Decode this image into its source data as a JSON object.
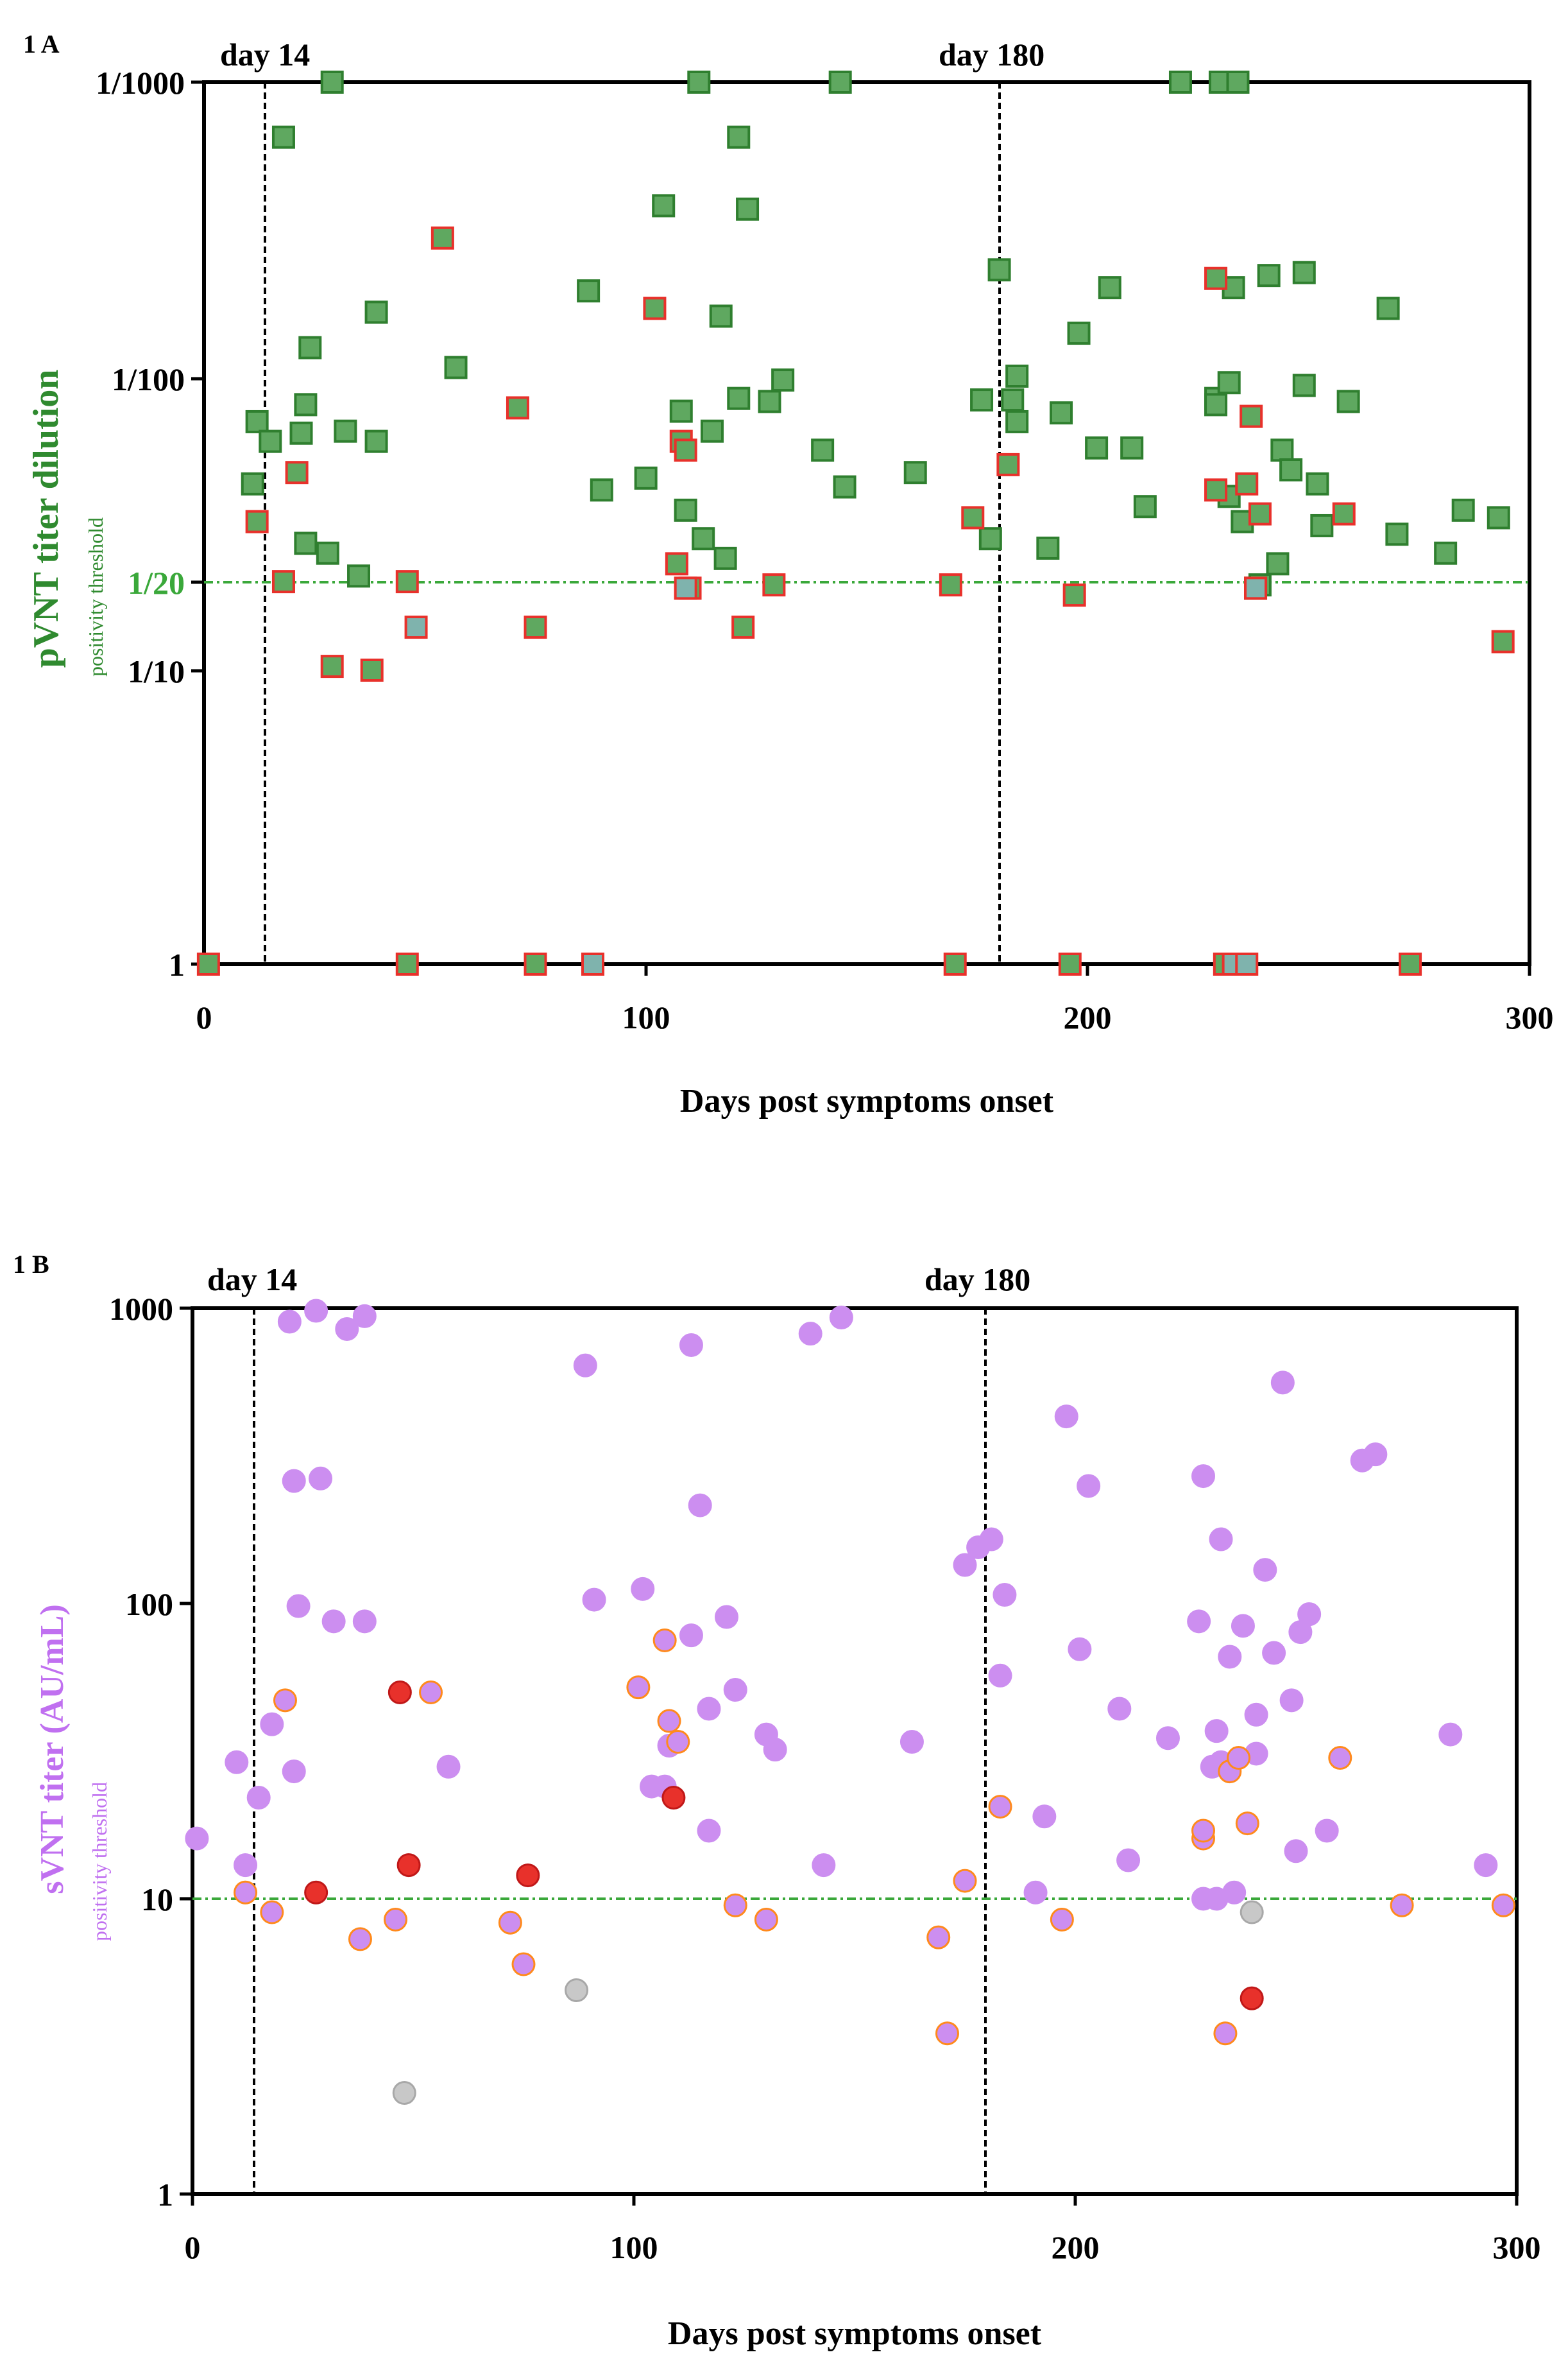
{
  "colors": {
    "green_fill": "#5fa860",
    "green_edge": "#2f7f2f",
    "red_edge": "#e8312b",
    "teal_fill": "#7fb3ad",
    "blue_edge": "#2f7fc0",
    "violet_fill": "#cc8ef0",
    "red_fill": "#e8312b",
    "orange_edge": "#ff8a1c",
    "gray_fill": "#c8c8c8",
    "threshold_green": "#3aa83a",
    "axis_violet": "#c070f0"
  },
  "chart_data": [
    {
      "id": "1A",
      "type": "scatter",
      "panel_label": "1 A",
      "xlabel": "Days post symptoms onset",
      "ylabel": "pVNT titer dilution",
      "ylabel_sub": "positivity threshold",
      "xlim": [
        0,
        300
      ],
      "ylim": [
        1,
        1000
      ],
      "yscale": "log",
      "xticks": [
        0,
        100,
        200,
        300
      ],
      "yticks": [
        {
          "value": 1,
          "label": "1"
        },
        {
          "value": 10,
          "label": "1/10"
        },
        {
          "value": 20,
          "label": "1/20"
        },
        {
          "value": 100,
          "label": "1/100"
        },
        {
          "value": 1000,
          "label": "1/1000"
        }
      ],
      "vlines": [
        {
          "x": 14,
          "label": "day 14"
        },
        {
          "x": 180,
          "label": "day 180"
        }
      ],
      "threshold": 20,
      "series": [
        {
          "name": "green",
          "points": [
            [
              11,
              43
            ],
            [
              12,
              70
            ],
            [
              15,
              60
            ],
            [
              18,
              650
            ],
            [
              22,
              64
            ],
            [
              23,
              80
            ],
            [
              24,
              125
            ],
            [
              23,
              27
            ],
            [
              28,
              25
            ],
            [
              29,
              1000
            ],
            [
              32,
              65
            ],
            [
              35,
              20.9
            ],
            [
              39,
              60
            ],
            [
              39,
              165
            ],
            [
              57,
              107
            ],
            [
              87,
              195
            ],
            [
              90,
              41
            ],
            [
              100,
              45
            ],
            [
              104,
              380
            ],
            [
              108,
              76
            ],
            [
              109,
              35
            ],
            [
              112,
              1000
            ],
            [
              113,
              28
            ],
            [
              115,
              65
            ],
            [
              117,
              160
            ],
            [
              118,
              24
            ],
            [
              121,
              650
            ],
            [
              121,
              84
            ],
            [
              123,
              370
            ],
            [
              128,
              82
            ],
            [
              131,
              97
            ],
            [
              140,
              56
            ],
            [
              145,
              42
            ],
            [
              144,
              1000
            ],
            [
              161,
              47
            ],
            [
              176,
              83
            ],
            [
              178,
              28
            ],
            [
              180,
              230
            ],
            [
              183,
              83
            ],
            [
              184,
              70
            ],
            [
              184,
              100
            ],
            [
              191,
              26
            ],
            [
              194,
              75
            ],
            [
              198,
              140
            ],
            [
              202,
              57
            ],
            [
              205,
              200
            ],
            [
              210,
              57
            ],
            [
              213,
              36
            ],
            [
              221,
              1000
            ],
            [
              229,
              84
            ],
            [
              229,
              80
            ],
            [
              230,
              1000
            ],
            [
              232,
              39
            ],
            [
              233,
              200
            ],
            [
              232,
              95
            ],
            [
              234,
              1000
            ],
            [
              235,
              32
            ],
            [
              238,
              19
            ],
            [
              239,
              19.5
            ],
            [
              243,
              23
            ],
            [
              241,
              220
            ],
            [
              244,
              56
            ],
            [
              246,
              48
            ],
            [
              249,
              93
            ],
            [
              249,
              225
            ],
            [
              252,
              43
            ],
            [
              253,
              31
            ],
            [
              259,
              82
            ],
            [
              268,
              170
            ],
            [
              270,
              29
            ],
            [
              281,
              25
            ],
            [
              285,
              35
            ],
            [
              293,
              33
            ]
          ]
        },
        {
          "name": "red",
          "points": [
            [
              1,
              1
            ],
            [
              12,
              32
            ],
            [
              21,
              47
            ],
            [
              18,
              20
            ],
            [
              29,
              10.3
            ],
            [
              38,
              10
            ],
            [
              46,
              20
            ],
            [
              46,
              1
            ],
            [
              54,
              295
            ],
            [
              71,
              78
            ],
            [
              75,
              14
            ],
            [
              75,
              1
            ],
            [
              102,
              170
            ],
            [
              107,
              23
            ],
            [
              108,
              60
            ],
            [
              109,
              56
            ],
            [
              110,
              19
            ],
            [
              122,
              14
            ],
            [
              129,
              19.5
            ],
            [
              169,
              19.5
            ],
            [
              170,
              1
            ],
            [
              174,
              33
            ],
            [
              182,
              50
            ],
            [
              196,
              1
            ],
            [
              197,
              18
            ],
            [
              229,
              215
            ],
            [
              229,
              41
            ],
            [
              231,
              1
            ],
            [
              236,
              43
            ],
            [
              237,
              73
            ],
            [
              239,
              34
            ],
            [
              258,
              34
            ],
            [
              294,
              12.5
            ],
            [
              273,
              1
            ]
          ]
        },
        {
          "name": "teal",
          "points": [
            [
              48,
              14
            ],
            [
              109,
              19
            ],
            [
              88,
              1
            ],
            [
              233,
              1
            ],
            [
              236,
              1
            ],
            [
              238,
              19
            ]
          ]
        }
      ]
    },
    {
      "id": "1B",
      "type": "scatter",
      "panel_label": "1 B",
      "xlabel": "Days post symptoms onset",
      "ylabel": "sVNT titer (AU/mL)",
      "ylabel_sub": "positivity threshold",
      "xlim": [
        0,
        300
      ],
      "ylim": [
        1,
        1000
      ],
      "yscale": "log",
      "xticks": [
        0,
        100,
        200,
        300
      ],
      "yticks": [
        {
          "value": 1,
          "label": "1"
        },
        {
          "value": 10,
          "label": "10"
        },
        {
          "value": 100,
          "label": "100"
        },
        {
          "value": 1000,
          "label": "1000"
        }
      ],
      "vlines": [
        {
          "x": 14,
          "label": "day 14"
        },
        {
          "x": 180,
          "label": "day 180"
        }
      ],
      "threshold": 10,
      "series": [
        {
          "name": "violet",
          "points": [
            [
              1,
              16
            ],
            [
              10,
              29
            ],
            [
              12,
              13
            ],
            [
              15,
              22
            ],
            [
              18,
              39
            ],
            [
              22,
              900
            ],
            [
              23,
              260
            ],
            [
              23,
              27
            ],
            [
              24,
              98
            ],
            [
              28,
              980
            ],
            [
              29,
              265
            ],
            [
              32,
              87
            ],
            [
              35,
              850
            ],
            [
              39,
              940
            ],
            [
              39,
              87
            ],
            [
              58,
              28
            ],
            [
              89,
              640
            ],
            [
              91,
              103
            ],
            [
              102,
              112
            ],
            [
              104,
              24
            ],
            [
              107,
              24
            ],
            [
              108,
              33
            ],
            [
              113,
              78
            ],
            [
              113,
              750
            ],
            [
              115,
              215
            ],
            [
              117,
              17
            ],
            [
              117,
              44
            ],
            [
              121,
              90
            ],
            [
              123,
              51
            ],
            [
              130,
              36
            ],
            [
              132,
              32
            ],
            [
              140,
              820
            ],
            [
              143,
              13
            ],
            [
              147,
              930
            ],
            [
              163,
              34
            ],
            [
              175,
              135
            ],
            [
              178,
              155
            ],
            [
              181,
              165
            ],
            [
              184,
              107
            ],
            [
              183,
              57
            ],
            [
              191,
              10.5
            ],
            [
              193,
              19
            ],
            [
              198,
              430
            ],
            [
              201,
              70
            ],
            [
              203,
              250
            ],
            [
              210,
              44
            ],
            [
              212,
              13.5
            ],
            [
              221,
              35
            ],
            [
              228,
              87
            ],
            [
              229,
              270
            ],
            [
              231,
              28
            ],
            [
              232,
              37
            ],
            [
              233,
              165
            ],
            [
              233,
              29
            ],
            [
              235,
              66
            ],
            [
              238,
              84
            ],
            [
              241,
              31
            ],
            [
              241,
              42
            ],
            [
              243,
              130
            ],
            [
              245,
              68
            ],
            [
              247,
              560
            ],
            [
              249,
              47
            ],
            [
              250,
              14.5
            ],
            [
              251,
              80
            ],
            [
              253,
              92
            ],
            [
              257,
              17
            ],
            [
              265,
              305
            ],
            [
              268,
              320
            ],
            [
              285,
              36
            ],
            [
              293,
              13
            ],
            [
              229,
              10
            ],
            [
              232,
              10
            ],
            [
              236,
              10.5
            ]
          ]
        },
        {
          "name": "red",
          "points": [
            [
              28,
              10.5
            ],
            [
              47,
              50
            ],
            [
              49,
              13
            ],
            [
              76,
              12
            ],
            [
              109,
              22
            ],
            [
              240,
              4.6
            ]
          ]
        },
        {
          "name": "orange",
          "points": [
            [
              12,
              10.5
            ],
            [
              18,
              9
            ],
            [
              21,
              47
            ],
            [
              38,
              7.3
            ],
            [
              46,
              8.5
            ],
            [
              54,
              50
            ],
            [
              72,
              8.3
            ],
            [
              75,
              6
            ],
            [
              107,
              75
            ],
            [
              108,
              40
            ],
            [
              110,
              34
            ],
            [
              101,
              52
            ],
            [
              123,
              9.5
            ],
            [
              130,
              8.5
            ],
            [
              169,
              7.4
            ],
            [
              171,
              3.5
            ],
            [
              175,
              11.5
            ],
            [
              183,
              20.5
            ],
            [
              197,
              8.5
            ],
            [
              229,
              16
            ],
            [
              229,
              17
            ],
            [
              235,
              27
            ],
            [
              237,
              30
            ],
            [
              239,
              18
            ],
            [
              234,
              3.5
            ],
            [
              260,
              30
            ],
            [
              274,
              9.5
            ],
            [
              297,
              9.5
            ]
          ]
        },
        {
          "name": "gray",
          "points": [
            [
              48,
              2.2
            ],
            [
              87,
              4.9
            ],
            [
              240,
              9
            ]
          ]
        }
      ]
    }
  ]
}
